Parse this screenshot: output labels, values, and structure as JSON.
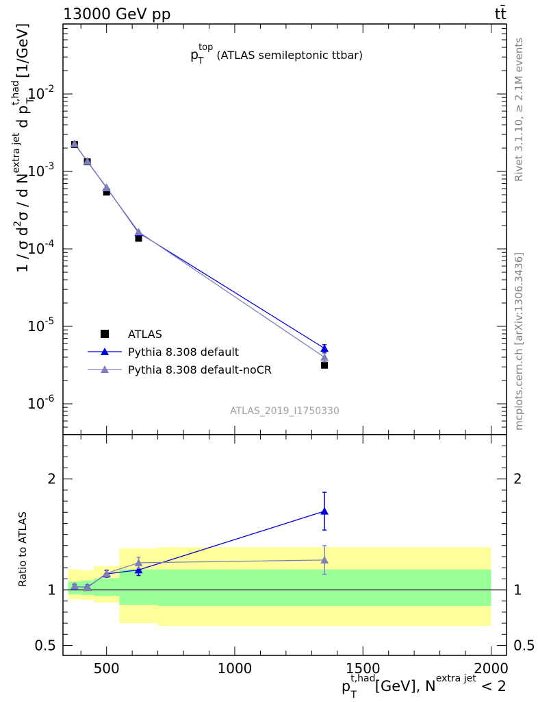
{
  "header": {
    "energy_label": "13000 GeV pp",
    "process_label": "tt̄"
  },
  "side_labels": {
    "rivet": "Rivet 3.1.10, ≥ 2.1M events",
    "mcplots": "mcplots.cern.ch [arXiv:1306.3436]"
  },
  "watermark": "ATLAS_2019_I1750330",
  "chart_data": [
    {
      "type": "line",
      "title": "p_T^top (ATLAS semileptonic ttbar)",
      "title_parts": {
        "p": "p",
        "sup": "top",
        "sub": "T",
        "rest": " (ATLAS semileptonic ttbar)"
      },
      "ylabel_parts": {
        "a": "1 / σ d",
        "b": "2",
        "c": "σ /  d N",
        "d": "extra jet",
        "e": " d p",
        "f": "t,had",
        "g": "T",
        "h": " [1/GeV]"
      },
      "yscale": "log",
      "ylim": [
        4e-07,
        0.08
      ],
      "xlim": [
        330,
        2060
      ],
      "y_ticks": [
        {
          "mant": "10",
          "exp": "-2",
          "value": 0.01
        },
        {
          "mant": "10",
          "exp": "-3",
          "value": 0.001
        },
        {
          "mant": "10",
          "exp": "-4",
          "value": 0.0001
        },
        {
          "mant": "10",
          "exp": "-5",
          "value": 1e-05
        },
        {
          "mant": "10",
          "exp": "-6",
          "value": 1e-06
        }
      ],
      "legend_position": "lower-left",
      "x_bin_edges": [
        350,
        400,
        450,
        550,
        700,
        2000
      ],
      "series": [
        {
          "name": "ATLAS",
          "marker": "square",
          "color": "#000000",
          "x": [
            375,
            425,
            500,
            625,
            1350
          ],
          "y": [
            0.00222,
            0.00133,
            0.00054,
            0.000137,
            3.15e-06
          ]
        },
        {
          "name": "Pythia 8.308 default",
          "marker": "triangle",
          "color": "#0000dd",
          "x": [
            375,
            425,
            500,
            625,
            1350
          ],
          "y": [
            0.00228,
            0.00135,
            0.000618,
            0.000162,
            5.2e-06
          ],
          "err": [
            1e-05,
            1e-05,
            5e-06,
            3e-06,
            6e-07
          ]
        },
        {
          "name": "Pythia 8.308 default-noCR",
          "marker": "triangle",
          "color": "#7f7fba",
          "x": [
            375,
            425,
            500,
            625,
            1350
          ],
          "y": [
            0.00228,
            0.00135,
            0.000613,
            0.000166,
            3.99e-06
          ],
          "err": [
            1e-05,
            1e-05,
            5e-06,
            3e-06,
            5e-07
          ]
        }
      ]
    },
    {
      "type": "line",
      "ylabel": "Ratio to ATLAS",
      "xlabel_parts": {
        "p": "p",
        "sup": "t,had",
        "sub": "T",
        "mid": " [GeV], N",
        "sup2": "extra jet",
        "end": " < 2"
      },
      "ylim": [
        0.41,
        2.4
      ],
      "xlim": [
        330,
        2060
      ],
      "x_ticks": [
        500,
        1000,
        1500,
        2000
      ],
      "x_tick_labels": [
        "500",
        "1000",
        "1500",
        "2000"
      ],
      "y_ticks": [
        0.5,
        1,
        2
      ],
      "y_tick_labels": [
        "0.5",
        "1",
        "2"
      ],
      "bands": {
        "x_edges": [
          350,
          400,
          450,
          550,
          700,
          2000
        ],
        "yellow_lo": [
          0.915,
          0.91,
          0.885,
          0.7,
          0.675
        ],
        "yellow_hi": [
          1.185,
          1.175,
          1.215,
          1.375,
          1.385
        ],
        "green_lo": [
          0.96,
          0.955,
          0.945,
          0.865,
          0.855
        ],
        "green_hi": [
          1.075,
          1.085,
          1.105,
          1.185,
          1.185
        ],
        "yellow_color": "#ffff99",
        "green_color": "#99ff99"
      },
      "series": [
        {
          "name": "Pythia 8.308 default",
          "color": "#0000dd",
          "x": [
            375,
            425,
            500,
            625,
            1350
          ],
          "y": [
            1.03,
            1.025,
            1.145,
            1.18,
            1.71
          ],
          "err": [
            0.02,
            0.02,
            0.03,
            0.05,
            0.17
          ]
        },
        {
          "name": "Pythia 8.308 default-noCR",
          "color": "#7f7fba",
          "x": [
            375,
            425,
            500,
            625,
            1350
          ],
          "y": [
            1.035,
            1.02,
            1.15,
            1.245,
            1.27
          ],
          "err": [
            0.02,
            0.02,
            0.03,
            0.05,
            0.13
          ]
        }
      ]
    }
  ]
}
